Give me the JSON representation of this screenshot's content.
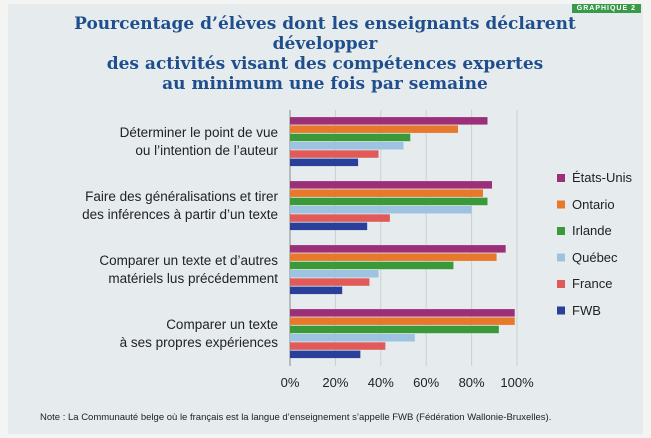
{
  "chart_data": {
    "type": "hbar",
    "title": "Pourcentage d’élèves dont les enseignants déclarent développer\ndes activités visant des compétences expertes\nau minimum une fois par semaine",
    "badge": "GRAPHIQUE 2",
    "note": "Note : La Communauté belge où le français est la langue d’enseignement s’appelle FWB (Fédération Wallonie-Bruxelles).",
    "categories": [
      "Déterminer le point de vue\nou l’intention de l’auteur",
      "Faire des généralisations et tirer\ndes inférences à partir d’un texte",
      "Comparer un texte et d’autres\nmatériels lus précédemment",
      "Comparer un texte\nà ses propres expériences"
    ],
    "series": [
      {
        "name": "États-Unis",
        "color": "#9b2f7a",
        "values": [
          87,
          89,
          95,
          99
        ]
      },
      {
        "name": "Ontario",
        "color": "#e8782a",
        "values": [
          74,
          85,
          91,
          99
        ]
      },
      {
        "name": "Irlande",
        "color": "#3a9a3a",
        "values": [
          53,
          87,
          72,
          92
        ]
      },
      {
        "name": "Québec",
        "color": "#9ec3e0",
        "values": [
          50,
          80,
          39,
          55
        ]
      },
      {
        "name": "France",
        "color": "#e05a5a",
        "values": [
          39,
          44,
          35,
          42
        ]
      },
      {
        "name": "FWB",
        "color": "#2a3f9a",
        "values": [
          30,
          34,
          23,
          31
        ]
      }
    ],
    "xlim": [
      0,
      100
    ],
    "xticks": [
      {
        "value": 0,
        "label": "0%"
      },
      {
        "value": 20,
        "label": "20%"
      },
      {
        "value": 40,
        "label": "40%"
      },
      {
        "value": 60,
        "label": "60%"
      },
      {
        "value": 80,
        "label": "80%"
      },
      {
        "value": 100,
        "label": "100%"
      }
    ],
    "grid": true
  }
}
